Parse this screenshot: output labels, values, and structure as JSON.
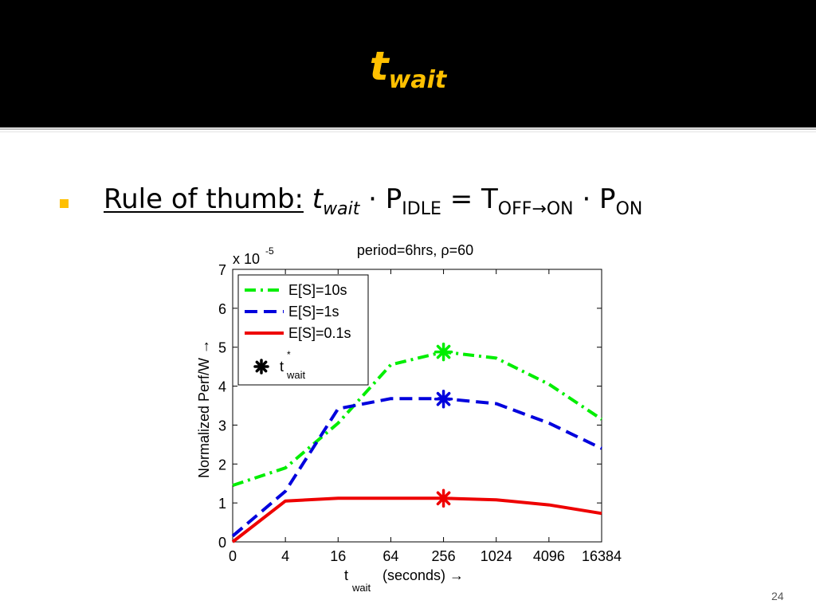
{
  "slide": {
    "title_main": "t",
    "title_sub": "wait",
    "bullet": {
      "label": "Rule of thumb:",
      "t": "t",
      "t_sub": "wait",
      "p1": "· P",
      "p1_sub": "IDLE",
      "eq": "= T",
      "eq_sub": "OFF→ON",
      "p2": "· P",
      "p2_sub": "ON"
    },
    "page_number": "24",
    "accent_color": "#ffc000"
  },
  "chart_data": {
    "type": "line",
    "title": "period=6hrs, ρ=60",
    "xlabel_main": "t",
    "xlabel_sub": "wait",
    "xlabel_rest": "(seconds) →",
    "ylabel": "Normalized Perf/W →",
    "y_exponent_label": "x 10",
    "y_exponent_power": "-5",
    "x_ticks": [
      "0",
      "4",
      "16",
      "64",
      "256",
      "1024",
      "4096",
      "16384"
    ],
    "y_ticks": [
      "0",
      "1",
      "2",
      "3",
      "4",
      "5",
      "6",
      "7"
    ],
    "ylim": [
      0,
      7
    ],
    "legend_position": "top-left",
    "series": [
      {
        "name": "E[S]=10s",
        "color": "#00ee00",
        "style": "dashdot",
        "x": [
          0,
          4,
          16,
          64,
          256,
          1024,
          4096,
          16384
        ],
        "values": [
          1.45,
          1.9,
          3.05,
          4.55,
          4.88,
          4.72,
          4.05,
          3.15
        ],
        "marker_x": 256,
        "marker_y": 4.88
      },
      {
        "name": "E[S]=1s",
        "color": "#0000dd",
        "style": "dashed",
        "x": [
          0,
          4,
          16,
          64,
          256,
          1024,
          4096,
          16384
        ],
        "values": [
          0.15,
          1.3,
          3.42,
          3.68,
          3.68,
          3.55,
          3.05,
          2.4
        ],
        "marker_x": 256,
        "marker_y": 3.67
      },
      {
        "name": "E[S]=0.1s",
        "color": "#ee0000",
        "style": "solid",
        "x": [
          0,
          4,
          16,
          64,
          256,
          1024,
          4096,
          16384
        ],
        "values": [
          0.0,
          1.05,
          1.12,
          1.12,
          1.12,
          1.08,
          0.95,
          0.73
        ],
        "marker_x": 256,
        "marker_y": 1.12
      }
    ],
    "marker_legend": {
      "main": "t",
      "sup": "*",
      "sub": "wait"
    }
  }
}
